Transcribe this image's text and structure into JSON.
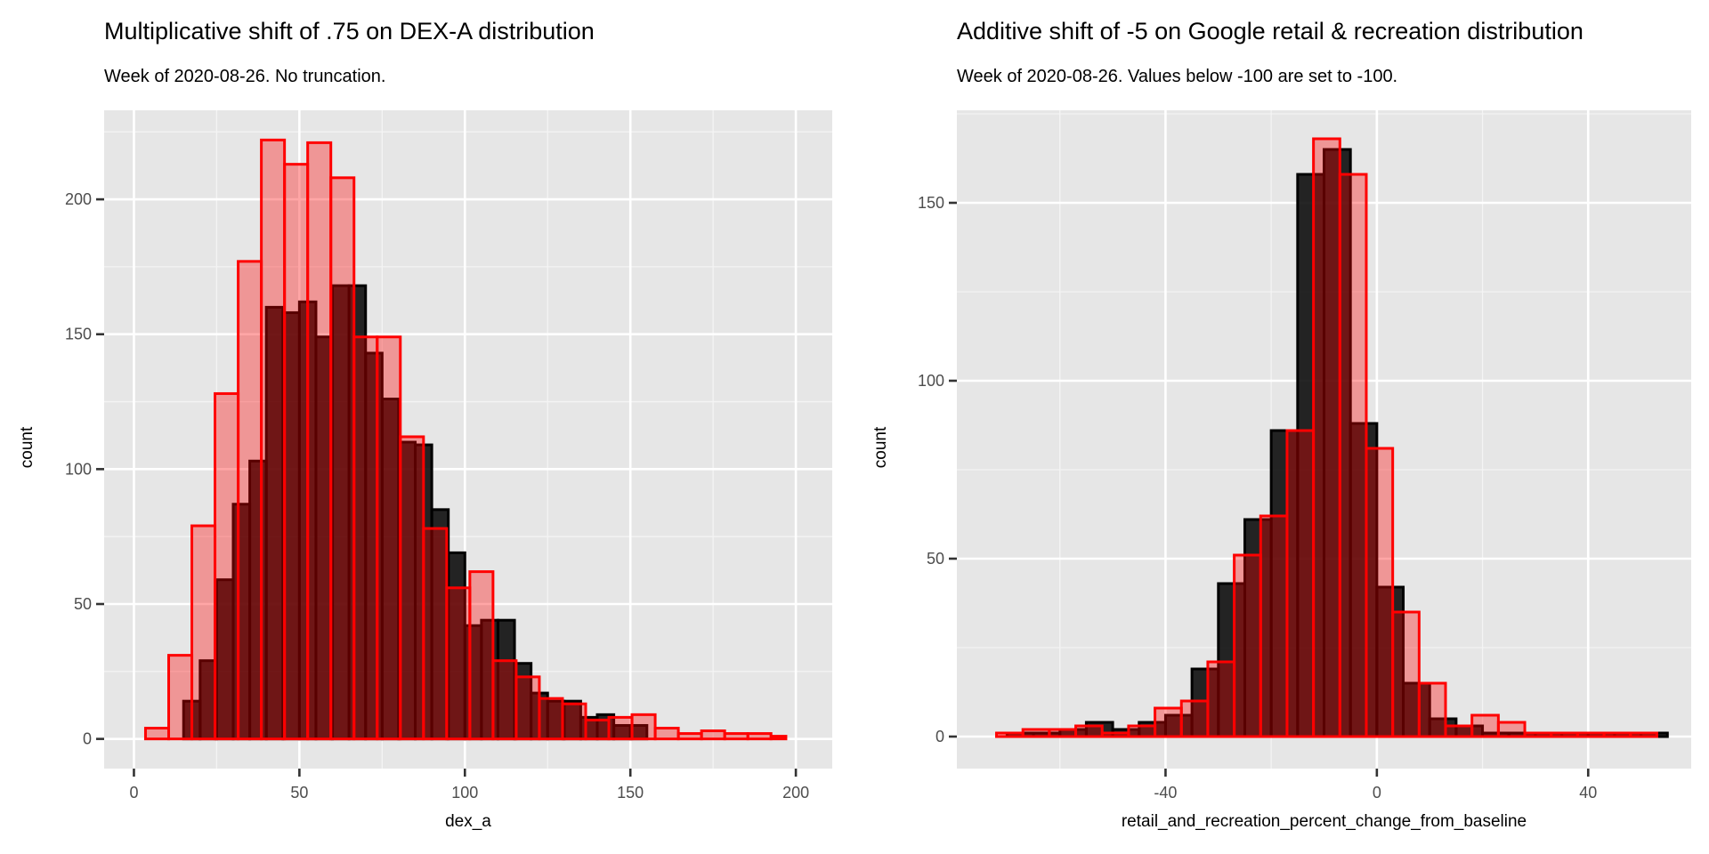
{
  "chart_data": [
    {
      "type": "bar",
      "title": "Multiplicative shift of .75 on DEX-A distribution",
      "subtitle": "Week of 2020-08-26. No truncation.",
      "xlabel": "dex_a",
      "ylabel": "count",
      "xlim": [
        -9,
        211
      ],
      "ylim": [
        -11,
        233
      ],
      "xticks": [
        0,
        50,
        100,
        150,
        200
      ],
      "yticks": [
        0,
        50,
        100,
        150,
        200
      ],
      "grid": true,
      "series": [
        {
          "role": "original",
          "color": "#000000",
          "bins": [
            {
              "x0": 15,
              "x1": 20,
              "value": 14
            },
            {
              "x0": 20,
              "x1": 25,
              "value": 29
            },
            {
              "x0": 25,
              "x1": 30,
              "value": 59
            },
            {
              "x0": 30,
              "x1": 35,
              "value": 87
            },
            {
              "x0": 35,
              "x1": 40,
              "value": 103
            },
            {
              "x0": 40,
              "x1": 45,
              "value": 160
            },
            {
              "x0": 45,
              "x1": 50,
              "value": 158
            },
            {
              "x0": 50,
              "x1": 55,
              "value": 162
            },
            {
              "x0": 55,
              "x1": 60,
              "value": 149
            },
            {
              "x0": 60,
              "x1": 65,
              "value": 168
            },
            {
              "x0": 65,
              "x1": 70,
              "value": 168
            },
            {
              "x0": 70,
              "x1": 75,
              "value": 143
            },
            {
              "x0": 75,
              "x1": 80,
              "value": 126
            },
            {
              "x0": 80,
              "x1": 85,
              "value": 110
            },
            {
              "x0": 85,
              "x1": 90,
              "value": 109
            },
            {
              "x0": 90,
              "x1": 95,
              "value": 85
            },
            {
              "x0": 95,
              "x1": 100,
              "value": 69
            },
            {
              "x0": 100,
              "x1": 105,
              "value": 42
            },
            {
              "x0": 105,
              "x1": 110,
              "value": 44
            },
            {
              "x0": 110,
              "x1": 115,
              "value": 44
            },
            {
              "x0": 115,
              "x1": 120,
              "value": 28
            },
            {
              "x0": 120,
              "x1": 125,
              "value": 17
            },
            {
              "x0": 125,
              "x1": 130,
              "value": 14
            },
            {
              "x0": 130,
              "x1": 135,
              "value": 14
            },
            {
              "x0": 135,
              "x1": 140,
              "value": 8
            },
            {
              "x0": 140,
              "x1": 145,
              "value": 9
            },
            {
              "x0": 145,
              "x1": 150,
              "value": 5
            },
            {
              "x0": 150,
              "x1": 155,
              "value": 5
            }
          ]
        },
        {
          "role": "shifted",
          "color": "#ff0000",
          "bins": [
            {
              "x0": 3.5,
              "x1": 10.5,
              "value": 4
            },
            {
              "x0": 10.5,
              "x1": 17.5,
              "value": 31
            },
            {
              "x0": 17.5,
              "x1": 24.5,
              "value": 79
            },
            {
              "x0": 24.5,
              "x1": 31.5,
              "value": 128
            },
            {
              "x0": 31.5,
              "x1": 38.5,
              "value": 177
            },
            {
              "x0": 38.5,
              "x1": 45.5,
              "value": 222
            },
            {
              "x0": 45.5,
              "x1": 52.5,
              "value": 213
            },
            {
              "x0": 52.5,
              "x1": 59.5,
              "value": 221
            },
            {
              "x0": 59.5,
              "x1": 66.5,
              "value": 208
            },
            {
              "x0": 66.5,
              "x1": 73.5,
              "value": 149
            },
            {
              "x0": 73.5,
              "x1": 80.5,
              "value": 149
            },
            {
              "x0": 80.5,
              "x1": 87.5,
              "value": 112
            },
            {
              "x0": 87.5,
              "x1": 94.5,
              "value": 78
            },
            {
              "x0": 94.5,
              "x1": 101.5,
              "value": 56
            },
            {
              "x0": 101.5,
              "x1": 108.5,
              "value": 62
            },
            {
              "x0": 108.5,
              "x1": 115.5,
              "value": 29
            },
            {
              "x0": 115.5,
              "x1": 122.5,
              "value": 23
            },
            {
              "x0": 122.5,
              "x1": 129.5,
              "value": 15
            },
            {
              "x0": 129.5,
              "x1": 136.5,
              "value": 13
            },
            {
              "x0": 136.5,
              "x1": 143.5,
              "value": 7
            },
            {
              "x0": 143.5,
              "x1": 150.5,
              "value": 8
            },
            {
              "x0": 150.5,
              "x1": 157.5,
              "value": 9
            },
            {
              "x0": 157.5,
              "x1": 164.5,
              "value": 4
            },
            {
              "x0": 164.5,
              "x1": 171.5,
              "value": 2
            },
            {
              "x0": 171.5,
              "x1": 178.5,
              "value": 3
            },
            {
              "x0": 178.5,
              "x1": 185.5,
              "value": 2
            },
            {
              "x0": 185.5,
              "x1": 192.5,
              "value": 2
            },
            {
              "x0": 192.5,
              "x1": 197,
              "value": 1
            }
          ]
        }
      ]
    },
    {
      "type": "bar",
      "title": "Additive shift of -5 on Google retail & recreation distribution",
      "subtitle": "Week of 2020-08-26. Values below -100 are set to -100.",
      "xlabel": "retail_and_recreation_percent_change_from_baseline",
      "ylabel": "count",
      "xlim": [
        -79.5,
        59.5
      ],
      "ylim": [
        -9,
        176
      ],
      "xticks": [
        -40,
        0,
        40
      ],
      "yticks": [
        0,
        50,
        100,
        150
      ],
      "grid": true,
      "series": [
        {
          "role": "original",
          "color": "#000000",
          "bins": [
            {
              "x0": -70,
              "x1": -65,
              "value": 1
            },
            {
              "x0": -65,
              "x1": -60,
              "value": 1
            },
            {
              "x0": -60,
              "x1": -55,
              "value": 2
            },
            {
              "x0": -55,
              "x1": -50,
              "value": 4
            },
            {
              "x0": -50,
              "x1": -45,
              "value": 2
            },
            {
              "x0": -45,
              "x1": -40,
              "value": 4
            },
            {
              "x0": -40,
              "x1": -35,
              "value": 6
            },
            {
              "x0": -35,
              "x1": -30,
              "value": 19
            },
            {
              "x0": -30,
              "x1": -25,
              "value": 43
            },
            {
              "x0": -25,
              "x1": -20,
              "value": 61
            },
            {
              "x0": -20,
              "x1": -15,
              "value": 86
            },
            {
              "x0": -15,
              "x1": -10,
              "value": 158
            },
            {
              "x0": -10,
              "x1": -5,
              "value": 165
            },
            {
              "x0": -5,
              "x1": 0,
              "value": 88
            },
            {
              "x0": 0,
              "x1": 5,
              "value": 42
            },
            {
              "x0": 5,
              "x1": 10,
              "value": 15
            },
            {
              "x0": 10,
              "x1": 15,
              "value": 5
            },
            {
              "x0": 15,
              "x1": 20,
              "value": 3
            },
            {
              "x0": 20,
              "x1": 25,
              "value": 1
            },
            {
              "x0": 25,
              "x1": 30,
              "value": 1
            },
            {
              "x0": 30,
              "x1": 35,
              "value": 1
            },
            {
              "x0": 35,
              "x1": 40,
              "value": 1
            },
            {
              "x0": 40,
              "x1": 45,
              "value": 1
            },
            {
              "x0": 45,
              "x1": 50,
              "value": 1
            },
            {
              "x0": 50,
              "x1": 55,
              "value": 1
            }
          ]
        },
        {
          "role": "shifted",
          "color": "#ff0000",
          "bins": [
            {
              "x0": -72,
              "x1": -67,
              "value": 1
            },
            {
              "x0": -67,
              "x1": -62,
              "value": 2
            },
            {
              "x0": -62,
              "x1": -57,
              "value": 2
            },
            {
              "x0": -57,
              "x1": -52,
              "value": 3
            },
            {
              "x0": -52,
              "x1": -47,
              "value": 1
            },
            {
              "x0": -47,
              "x1": -42,
              "value": 3
            },
            {
              "x0": -42,
              "x1": -37,
              "value": 8
            },
            {
              "x0": -37,
              "x1": -32,
              "value": 10
            },
            {
              "x0": -32,
              "x1": -27,
              "value": 21
            },
            {
              "x0": -27,
              "x1": -22,
              "value": 51
            },
            {
              "x0": -22,
              "x1": -17,
              "value": 62
            },
            {
              "x0": -17,
              "x1": -12,
              "value": 86
            },
            {
              "x0": -12,
              "x1": -7,
              "value": 168
            },
            {
              "x0": -7,
              "x1": -2,
              "value": 158
            },
            {
              "x0": -2,
              "x1": 3,
              "value": 81
            },
            {
              "x0": 3,
              "x1": 8,
              "value": 35
            },
            {
              "x0": 8,
              "x1": 13,
              "value": 15
            },
            {
              "x0": 13,
              "x1": 18,
              "value": 3
            },
            {
              "x0": 18,
              "x1": 23,
              "value": 6
            },
            {
              "x0": 23,
              "x1": 28,
              "value": 4
            },
            {
              "x0": 28,
              "x1": 33,
              "value": 1
            },
            {
              "x0": 33,
              "x1": 38,
              "value": 1
            },
            {
              "x0": 38,
              "x1": 43,
              "value": 1
            },
            {
              "x0": 43,
              "x1": 48,
              "value": 1
            },
            {
              "x0": 48,
              "x1": 53,
              "value": 1
            }
          ]
        }
      ]
    }
  ]
}
